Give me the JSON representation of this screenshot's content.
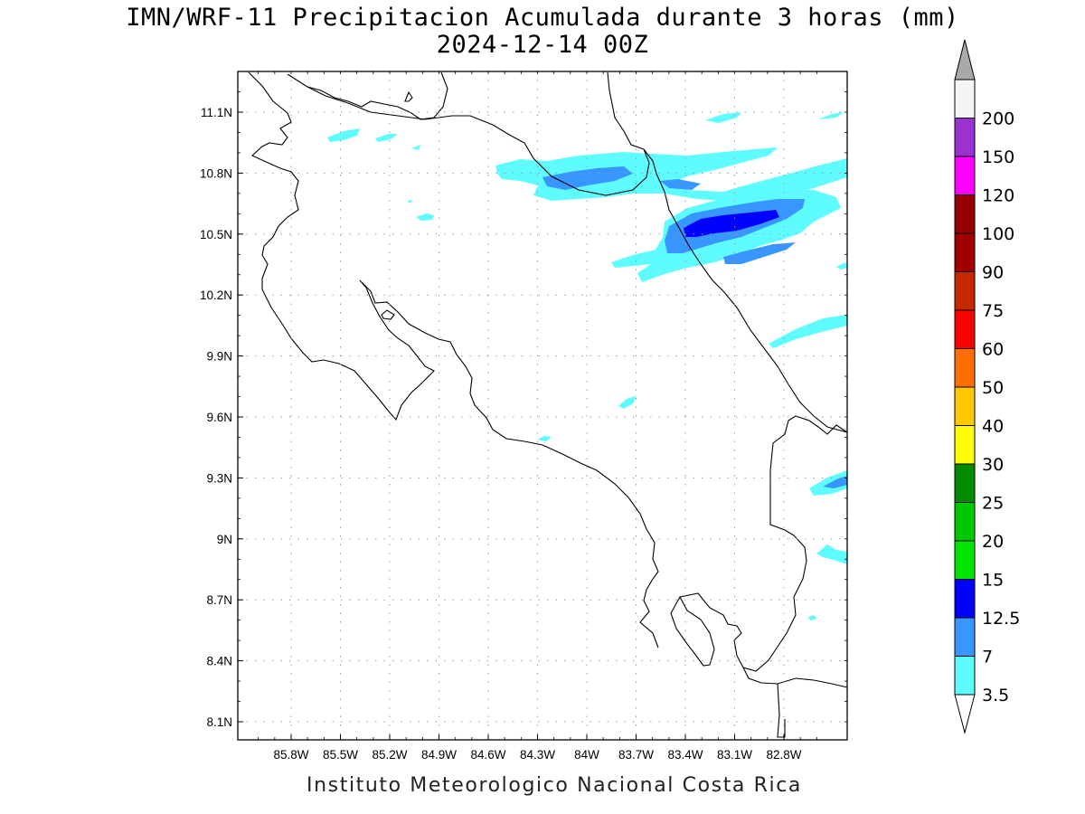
{
  "title": "IMN/WRF-11 Precipitacion Acumulada durante 3 horas (mm)",
  "subtitle": "2024-12-14 00Z",
  "footer": "Instituto Meteorologico Nacional Costa Rica",
  "map": {
    "lon_range": [
      -86.05,
      -83.1
    ],
    "lat_range": [
      8.0,
      11.3
    ],
    "lon_ticks": [
      {
        "value": -85.8,
        "label": "85.8W"
      },
      {
        "value": -85.5,
        "label": "85.5W"
      },
      {
        "value": -85.2,
        "label": "85.2W"
      },
      {
        "value": -84.9,
        "label": "84.9W"
      },
      {
        "value": -84.6,
        "label": "84.6W"
      },
      {
        "value": -84.3,
        "label": "84.3W"
      },
      {
        "value": -84.0,
        "label": "84W"
      },
      {
        "value": -83.7,
        "label": "83.7W"
      },
      {
        "value": -83.4,
        "label": "83.4W"
      },
      {
        "value": -83.1,
        "label": "83.1W"
      },
      {
        "value": -82.8,
        "label": "82.8W"
      }
    ],
    "lat_ticks": [
      {
        "value": 11.1,
        "label": "11.1N"
      },
      {
        "value": 10.8,
        "label": "10.8N"
      },
      {
        "value": 10.5,
        "label": "10.5N"
      },
      {
        "value": 10.2,
        "label": "10.2N"
      },
      {
        "value": 9.9,
        "label": "9.9N"
      },
      {
        "value": 9.6,
        "label": "9.6N"
      },
      {
        "value": 9.3,
        "label": "9.3N"
      },
      {
        "value": 9.0,
        "label": "9N"
      },
      {
        "value": 8.7,
        "label": "8.7N"
      },
      {
        "value": 8.4,
        "label": "8.4N"
      },
      {
        "value": 8.1,
        "label": "8.1N"
      }
    ],
    "grid": true,
    "line_color": "#000000"
  },
  "colorbar": {
    "levels": [
      {
        "label": "3.5",
        "color": "#5ffcff"
      },
      {
        "label": "7",
        "color": "#3796ff"
      },
      {
        "label": "12.5",
        "color": "#0000ff"
      },
      {
        "label": "15",
        "color": "#00e600"
      },
      {
        "label": "20",
        "color": "#00c800"
      },
      {
        "label": "25",
        "color": "#008c00"
      },
      {
        "label": "30",
        "color": "#ffff00"
      },
      {
        "label": "40",
        "color": "#ffc800"
      },
      {
        "label": "50",
        "color": "#ff6e00"
      },
      {
        "label": "60",
        "color": "#ff0000"
      },
      {
        "label": "75",
        "color": "#c82800"
      },
      {
        "label": "90",
        "color": "#a00000"
      },
      {
        "label": "100",
        "color": "#960000"
      },
      {
        "label": "120",
        "color": "#ff00ff"
      },
      {
        "label": "150",
        "color": "#9b32cd"
      },
      {
        "label": "200",
        "color": "#f5f5f5"
      }
    ],
    "top_arrow_color": "#a9a9a9",
    "bottom_arrow_color": "#ffffff"
  }
}
